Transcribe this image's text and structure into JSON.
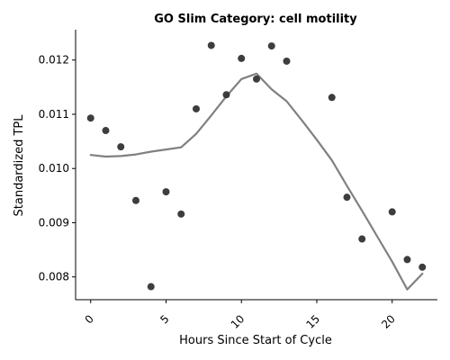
{
  "chart_data": {
    "type": "scatter",
    "title": "GO Slim Category: cell motility",
    "xlabel": "Hours Since Start of Cycle",
    "ylabel": "Standardized TPL",
    "xlim": [
      -1,
      23
    ],
    "ylim": [
      0.00758,
      0.01256
    ],
    "xticks": [
      0,
      5,
      10,
      15,
      20
    ],
    "xtick_labels": [
      "0",
      "5",
      "10",
      "15",
      "20"
    ],
    "yticks": [
      0.008,
      0.009,
      0.01,
      0.011,
      0.012
    ],
    "ytick_labels": [
      "0.008",
      "0.009",
      "0.010",
      "0.011",
      "0.012"
    ],
    "grid": false,
    "points": {
      "color": "#333333",
      "x": [
        0,
        1,
        2,
        3,
        4,
        5,
        6,
        7,
        8,
        9,
        10,
        11,
        12,
        13,
        16,
        17,
        18,
        20,
        21,
        22
      ],
      "y": [
        0.01093,
        0.0107,
        0.0104,
        0.00941,
        0.00782,
        0.00957,
        0.00916,
        0.0111,
        0.01227,
        0.01136,
        0.01203,
        0.01165,
        0.01226,
        0.01198,
        0.01131,
        0.00947,
        0.0087,
        0.0092,
        0.00832,
        0.00818
      ]
    },
    "trend": {
      "color": "#808080",
      "x": [
        0,
        1,
        2,
        3,
        4,
        5,
        6,
        7,
        8,
        9,
        10,
        11,
        12,
        13,
        14,
        15,
        16,
        17,
        18,
        19,
        20,
        21,
        22
      ],
      "y": [
        0.01025,
        0.01022,
        0.01023,
        0.01026,
        0.01031,
        0.01035,
        0.01039,
        0.01064,
        0.01098,
        0.01133,
        0.01165,
        0.01175,
        0.01146,
        0.01124,
        0.01089,
        0.01053,
        0.01015,
        0.00968,
        0.00922,
        0.00875,
        0.00828,
        0.00777,
        0.00806
      ]
    }
  }
}
